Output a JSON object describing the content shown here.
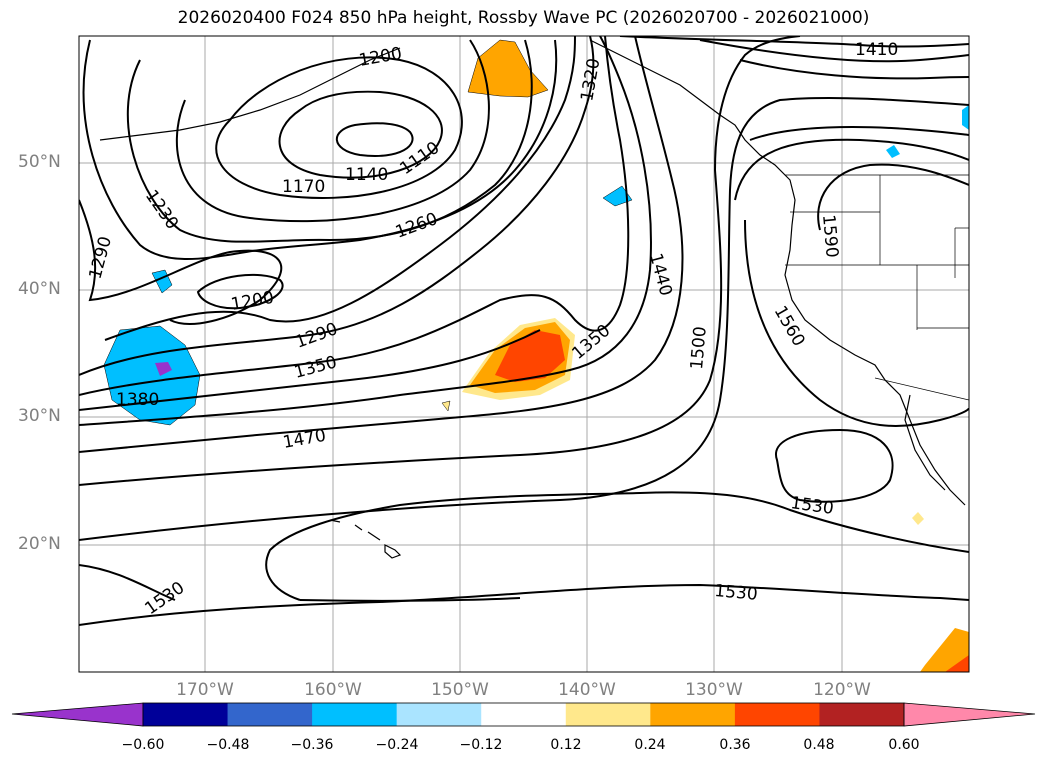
{
  "title": "2026020400 F024 850 hPa height, Rossby Wave PC (2026020700 - 2026021000)",
  "map": {
    "lat_labels": [
      "50°N",
      "40°N",
      "30°N",
      "20°N"
    ],
    "lon_labels": [
      "170°W",
      "160°W",
      "150°W",
      "140°W",
      "130°W",
      "120°W"
    ],
    "contour_labels": [
      "1410",
      "1320",
      "1200",
      "1140",
      "1110",
      "1170",
      "1230",
      "1260",
      "1290",
      "1200",
      "1290",
      "1350",
      "1380",
      "1350",
      "1440",
      "1500",
      "1560",
      "1590",
      "1470",
      "1530",
      "1530",
      "1530"
    ],
    "colorbar": {
      "ticks": [
        "−0.60",
        "−0.48",
        "−0.36",
        "−0.24",
        "−0.12",
        "0.12",
        "0.24",
        "0.36",
        "0.48",
        "0.60"
      ],
      "colors": [
        "#9933cc",
        "#000099",
        "#3366cc",
        "#00bfff",
        "#aae4ff",
        "#ffffff",
        "#ffe88c",
        "#ffa500",
        "#ff4500",
        "#b22222",
        "#ff88aa"
      ]
    }
  }
}
